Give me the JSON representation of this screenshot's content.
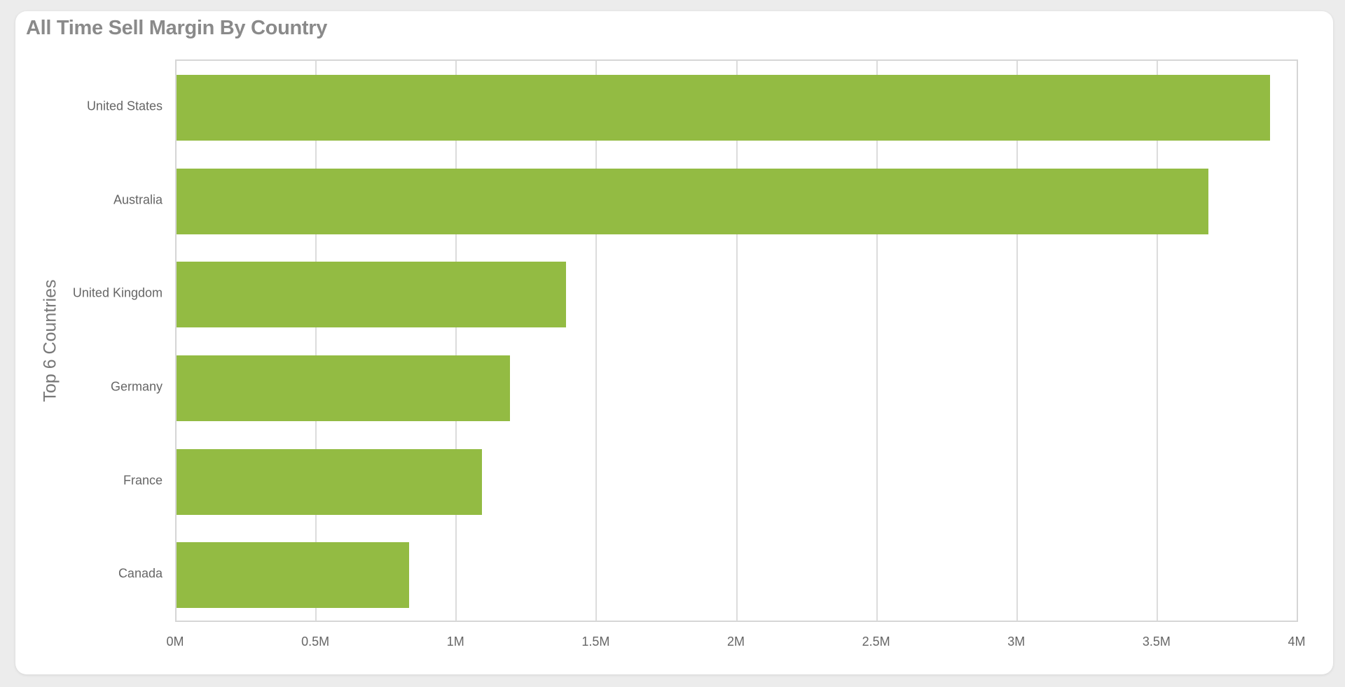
{
  "card": {
    "title": "All Time Sell Margin By Country"
  },
  "chart_data": {
    "type": "bar",
    "orientation": "horizontal",
    "title": "All Time Sell Margin By Country",
    "xlabel": "",
    "ylabel": "Top 6 Countries",
    "categories": [
      "United States",
      "Australia",
      "United Kingdom",
      "Germany",
      "France",
      "Canada"
    ],
    "values": [
      3.9,
      3.68,
      1.39,
      1.19,
      1.09,
      0.83
    ],
    "unit": "M",
    "xlim": [
      0,
      4
    ],
    "xticks": [
      "0M",
      "0.5M",
      "1M",
      "1.5M",
      "2M",
      "2.5M",
      "3M",
      "3.5M",
      "4M"
    ],
    "grid": true,
    "legend": null,
    "bar_color": "#93bb43"
  }
}
